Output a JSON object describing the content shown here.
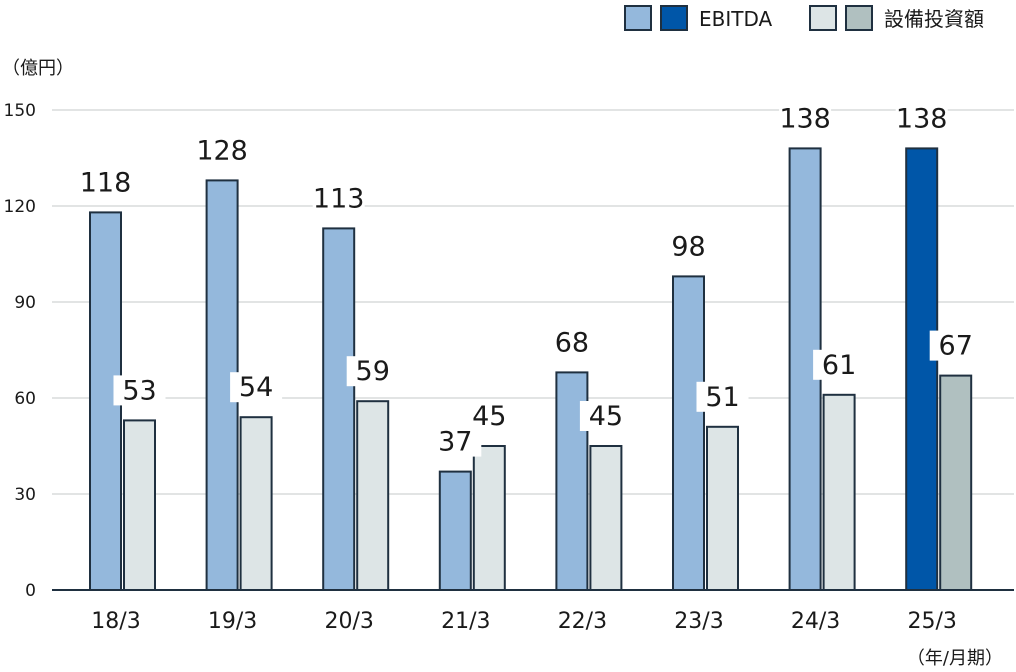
{
  "chart_data": {
    "type": "bar",
    "unit_label": "（億円）",
    "x_unit_label": "（年/月期）",
    "categories": [
      "18/3",
      "19/3",
      "20/3",
      "21/3",
      "22/3",
      "23/3",
      "24/3",
      "25/3"
    ],
    "series": [
      {
        "name": "EBITDA",
        "values": [
          118,
          128,
          113,
          37,
          68,
          98,
          138,
          138
        ],
        "colors": [
          "#94b8dc",
          "#94b8dc",
          "#94b8dc",
          "#94b8dc",
          "#94b8dc",
          "#94b8dc",
          "#94b8dc",
          "#0056a8"
        ],
        "value_labels": [
          "118",
          "128",
          "113",
          "37",
          "68",
          "98",
          "138",
          "138"
        ]
      },
      {
        "name": "設備投資額",
        "values": [
          53,
          54,
          59,
          45,
          45,
          51,
          61,
          67
        ],
        "colors": [
          "#dde5e6",
          "#dde5e6",
          "#dde5e6",
          "#dde5e6",
          "#dde5e6",
          "#dde5e6",
          "#dde5e6",
          "#b0c0c0"
        ],
        "value_labels": [
          "53",
          "54",
          "59",
          "45",
          "45",
          "51",
          "61",
          "67"
        ]
      }
    ],
    "legend": [
      {
        "name": "EBITDA",
        "colors": [
          "#94b8dc",
          "#0056a8"
        ]
      },
      {
        "name": "設備投資額",
        "colors": [
          "#dde5e6",
          "#b0c0c0"
        ]
      }
    ],
    "ylim": [
      0,
      150
    ],
    "yticks": [
      0,
      30,
      60,
      90,
      120,
      150
    ],
    "grid": true,
    "legend_position": "top-right",
    "bar_stroke_color": "#1f3040",
    "grid_color": "#d8dcdc",
    "axis_color": "#1f3040"
  }
}
